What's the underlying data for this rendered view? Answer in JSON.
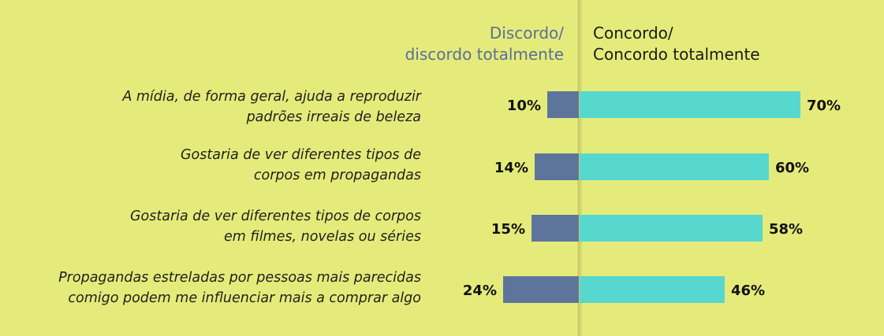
{
  "colors": {
    "background": "#e5eb7a",
    "disagree": "#5e759b",
    "agree": "#57d8cf",
    "divider": "#c9ce6a",
    "header_disagree": "#5b6e9b"
  },
  "headers": {
    "disagree": [
      "Discordo/",
      "discordo totalmente"
    ],
    "agree": [
      "Concordo/",
      "Concordo totalmente"
    ]
  },
  "statements": [
    [
      "A mídia, de forma geral, ajuda a reproduzir",
      "padrões irreais de beleza"
    ],
    [
      "Gostaria de ver diferentes tipos de",
      "corpos em propagandas"
    ],
    [
      "Gostaria de ver diferentes tipos de corpos",
      "em filmes, novelas ou séries"
    ],
    [
      "Propagandas estreladas por pessoas mais parecidas",
      "comigo podem me influenciar mais a comprar algo"
    ]
  ],
  "chart_data": {
    "type": "bar",
    "orientation": "horizontal-diverging",
    "categories": [
      "A mídia, de forma geral, ajuda a reproduzir padrões irreais de beleza",
      "Gostaria de ver diferentes tipos de corpos em propagandas",
      "Gostaria de ver diferentes tipos de corpos em filmes, novelas ou séries",
      "Propagandas estreladas por pessoas mais parecidas comigo podem me influenciar mais a comprar algo"
    ],
    "series": [
      {
        "name": "Discordo/ discordo totalmente",
        "values": [
          10,
          14,
          15,
          24
        ],
        "labels": [
          "10%",
          "14%",
          "15%",
          "24%"
        ]
      },
      {
        "name": "Concordo/ Concordo totalmente",
        "values": [
          70,
          60,
          58,
          46
        ],
        "labels": [
          "70%",
          "60%",
          "58%",
          "46%"
        ]
      }
    ],
    "unit": "%",
    "title": "",
    "xlabel": "",
    "ylabel": "",
    "grid": false,
    "legend": "top"
  }
}
